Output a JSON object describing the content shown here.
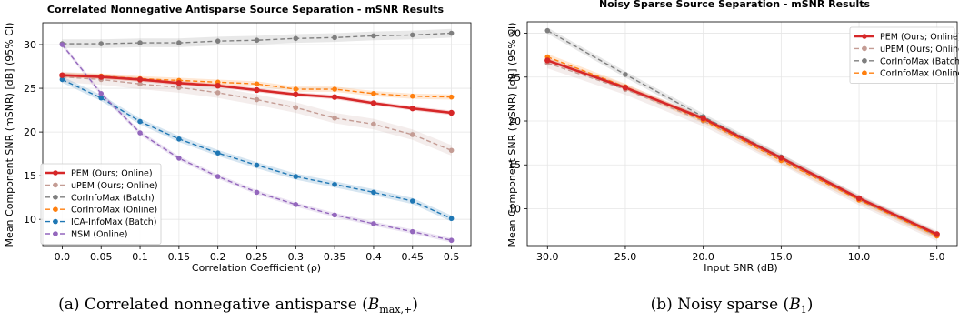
{
  "chart_data": [
    {
      "type": "line",
      "title": "Correlated Nonnegative Antisparse Source Separation - mSNR Results",
      "xlabel": "Correlation Coefficient (ρ)",
      "ylabel": "Mean Component SNR (mSNR) [dB] (95% CI)",
      "x": [
        0.0,
        0.05,
        0.1,
        0.15,
        0.2,
        0.25,
        0.3,
        0.35,
        0.4,
        0.45,
        0.5
      ],
      "x_tick_labels": [
        "0.0",
        "0.05",
        "0.1",
        "0.15",
        "0.2",
        "0.25",
        "0.3",
        "0.35",
        "0.4",
        "0.45",
        "0.5"
      ],
      "xlim": [
        -0.025,
        0.525
      ],
      "ylim": [
        7,
        32.5
      ],
      "yticks": [
        10,
        15,
        20,
        25,
        30
      ],
      "grid": true,
      "legend_position": "bottom-left",
      "caption_prefix": "(a) Correlated nonnegative antisparse (",
      "caption_symbol": "B",
      "caption_subscript": "max,+",
      "caption_suffix": ")",
      "series": [
        {
          "name": "PEM (Ours; Online)",
          "color": "#d62728",
          "style": "solid",
          "bold": true,
          "values": [
            26.5,
            26.3,
            26.0,
            25.6,
            25.3,
            24.8,
            24.3,
            24.0,
            23.3,
            22.7,
            22.2
          ],
          "ci": 0.25
        },
        {
          "name": "uPEM (Ours; Online)",
          "color": "#c49c94",
          "style": "dashed",
          "values": [
            26.3,
            26.0,
            25.5,
            25.1,
            24.5,
            23.7,
            22.8,
            21.6,
            20.9,
            19.7,
            17.9
          ],
          "ci": 0.6
        },
        {
          "name": "CorInfoMax (Batch)",
          "color": "#7f7f7f",
          "style": "dashed",
          "values": [
            30.1,
            30.1,
            30.2,
            30.2,
            30.4,
            30.5,
            30.7,
            30.8,
            31.0,
            31.1,
            31.3
          ],
          "ci": 0.5
        },
        {
          "name": "CorInfoMax (Online)",
          "color": "#ff7f0e",
          "style": "dashed",
          "values": [
            26.5,
            26.4,
            26.1,
            25.9,
            25.7,
            25.5,
            24.9,
            24.9,
            24.4,
            24.1,
            24.0
          ],
          "ci": 0.3
        },
        {
          "name": "ICA-InfoMax (Batch)",
          "color": "#1f77b4",
          "style": "dashed",
          "values": [
            26.0,
            23.9,
            21.2,
            19.2,
            17.6,
            16.2,
            14.9,
            14.0,
            13.1,
            12.1,
            10.1
          ],
          "ci": 0.35
        },
        {
          "name": "NSM (Online)",
          "color": "#9467bd",
          "style": "dashed",
          "values": [
            30.0,
            24.4,
            19.9,
            17.0,
            14.9,
            13.1,
            11.7,
            10.5,
            9.5,
            8.6,
            7.6
          ],
          "ci": 0.25
        }
      ]
    },
    {
      "type": "line",
      "title": "Noisy Sparse Source Separation - mSNR Results",
      "xlabel": "Input SNR (dB)",
      "ylabel": "Mean Component SNR (mSNR) [dB] (95% CI)",
      "x": [
        30,
        25,
        20,
        15,
        10,
        5
      ],
      "x_tick_labels": [
        "30.0",
        "25.0",
        "20.0",
        "15.0",
        "10.0",
        "5.0"
      ],
      "x_reversed": true,
      "xlim": [
        31.3,
        3.7
      ],
      "ylim": [
        5.8,
        31.3
      ],
      "yticks": [
        10,
        15,
        20,
        25,
        30
      ],
      "grid": true,
      "legend_position": "top-right",
      "caption_prefix": "(b) Noisy sparse (",
      "caption_symbol": "B",
      "caption_subscript": "1",
      "caption_suffix": ")",
      "series": [
        {
          "name": "PEM (Ours; Online)",
          "color": "#d62728",
          "style": "solid",
          "bold": true,
          "values": [
            26.9,
            23.8,
            20.3,
            15.8,
            11.2,
            7.1
          ],
          "ci": 0.25
        },
        {
          "name": "uPEM (Ours; Online)",
          "color": "#c49c94",
          "style": "dashed",
          "values": [
            26.6,
            23.6,
            20.0,
            15.6,
            11.0,
            6.9
          ],
          "ci": 0.6
        },
        {
          "name": "CorInfoMax (Batch)",
          "color": "#7f7f7f",
          "style": "dashed",
          "values": [
            30.3,
            25.3,
            20.5,
            15.9,
            11.2,
            7.0
          ],
          "ci": 0.35
        },
        {
          "name": "CorInfoMax (Online)",
          "color": "#ff7f0e",
          "style": "dashed",
          "values": [
            27.3,
            23.9,
            20.1,
            15.5,
            11.0,
            6.9
          ],
          "ci": 0.35
        }
      ]
    }
  ]
}
